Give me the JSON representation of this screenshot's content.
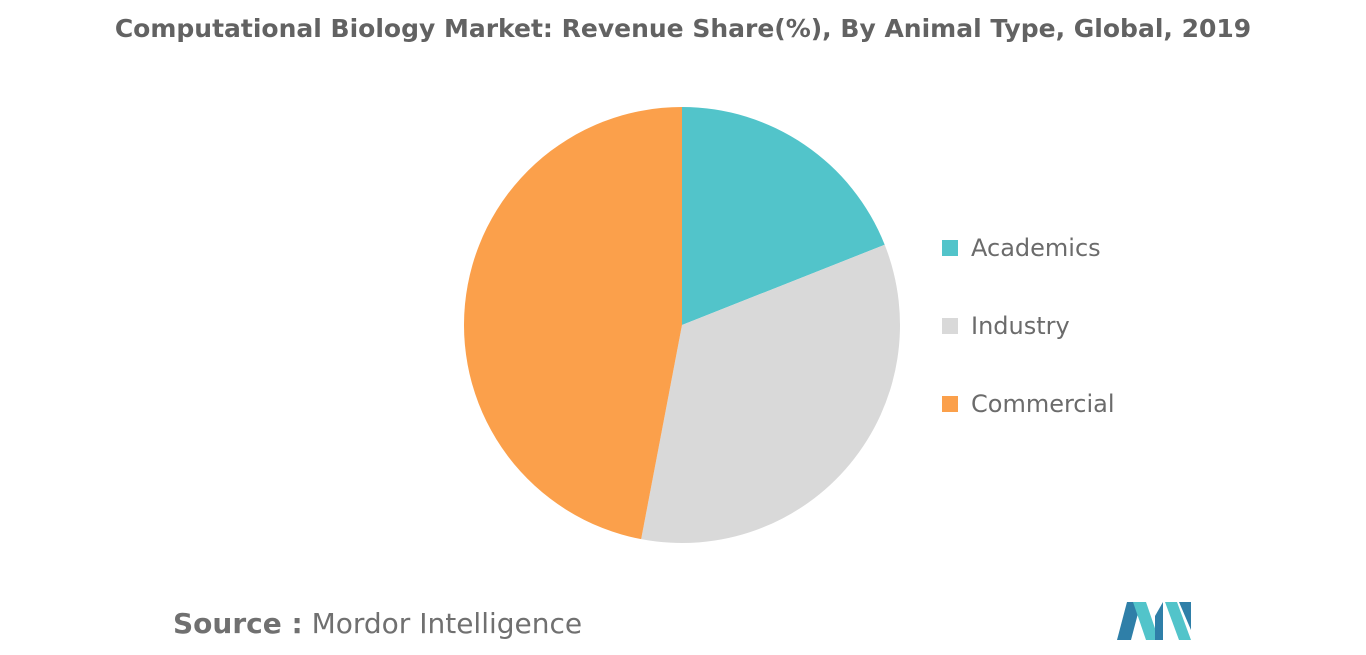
{
  "chart_data": {
    "type": "pie",
    "title": "Computational Biology Market: Revenue Share(%), By Animal Type, Global, 2019",
    "categories": [
      "Academics",
      "Industry",
      "Commercial"
    ],
    "values": [
      19,
      34,
      47
    ],
    "colors": [
      "#52c4ca",
      "#d9d9d9",
      "#fba04b"
    ],
    "legend_position": "right"
  },
  "source": {
    "label": "Source :",
    "text": "Mordor Intelligence"
  },
  "logo": {
    "icon": "mordor-intelligence-logo",
    "colors": [
      "#52c4ca",
      "#2f7fa8"
    ]
  }
}
